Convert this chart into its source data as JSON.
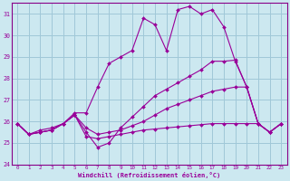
{
  "xlabel": "Windchill (Refroidissement éolien,°C)",
  "bg_color": "#cce8f0",
  "grid_color": "#a0c8d8",
  "line_color": "#990099",
  "spine_color": "#880088",
  "xlim": [
    -0.5,
    23.5
  ],
  "ylim": [
    24,
    31.5
  ],
  "yticks": [
    24,
    25,
    26,
    27,
    28,
    29,
    30,
    31
  ],
  "xticks": [
    0,
    1,
    2,
    3,
    4,
    5,
    6,
    7,
    8,
    9,
    10,
    11,
    12,
    13,
    14,
    15,
    16,
    17,
    18,
    19,
    20,
    21,
    22,
    23
  ],
  "series": [
    {
      "x": [
        0,
        1,
        2,
        3,
        4,
        5,
        6,
        7,
        8,
        9,
        10,
        11,
        12,
        13,
        14,
        15,
        16,
        17,
        18,
        19,
        20,
        21,
        22,
        23
      ],
      "y": [
        25.9,
        25.4,
        25.6,
        25.7,
        25.9,
        26.4,
        26.4,
        27.6,
        28.7,
        29.0,
        29.3,
        30.8,
        30.5,
        29.3,
        31.2,
        31.35,
        31.0,
        31.2,
        30.4,
        28.8,
        27.6,
        25.9,
        25.5,
        25.9
      ]
    },
    {
      "x": [
        0,
        1,
        2,
        3,
        4,
        5,
        6,
        7,
        8,
        9,
        10,
        11,
        12,
        13,
        14,
        15,
        16,
        17,
        18,
        19,
        20,
        21,
        22,
        23
      ],
      "y": [
        25.9,
        25.4,
        25.5,
        25.6,
        25.9,
        26.3,
        25.5,
        24.8,
        25.0,
        25.7,
        26.2,
        26.7,
        27.2,
        27.5,
        27.8,
        28.1,
        28.4,
        28.8,
        28.8,
        28.85,
        27.6,
        25.9,
        25.5,
        25.9
      ]
    },
    {
      "x": [
        0,
        1,
        2,
        3,
        4,
        5,
        6,
        7,
        8,
        9,
        10,
        11,
        12,
        13,
        14,
        15,
        16,
        17,
        18,
        19,
        20,
        21,
        22,
        23
      ],
      "y": [
        25.9,
        25.4,
        25.5,
        25.6,
        25.9,
        26.3,
        25.7,
        25.4,
        25.5,
        25.6,
        25.8,
        26.0,
        26.3,
        26.6,
        26.8,
        27.0,
        27.2,
        27.4,
        27.5,
        27.6,
        27.6,
        25.9,
        25.5,
        25.9
      ]
    },
    {
      "x": [
        0,
        1,
        2,
        3,
        4,
        5,
        6,
        7,
        8,
        9,
        10,
        11,
        12,
        13,
        14,
        15,
        16,
        17,
        18,
        19,
        20,
        21,
        22,
        23
      ],
      "y": [
        25.9,
        25.4,
        25.5,
        25.6,
        25.9,
        26.3,
        25.3,
        25.2,
        25.3,
        25.4,
        25.5,
        25.6,
        25.65,
        25.7,
        25.75,
        25.8,
        25.85,
        25.9,
        25.9,
        25.9,
        25.9,
        25.9,
        25.5,
        25.9
      ]
    }
  ]
}
